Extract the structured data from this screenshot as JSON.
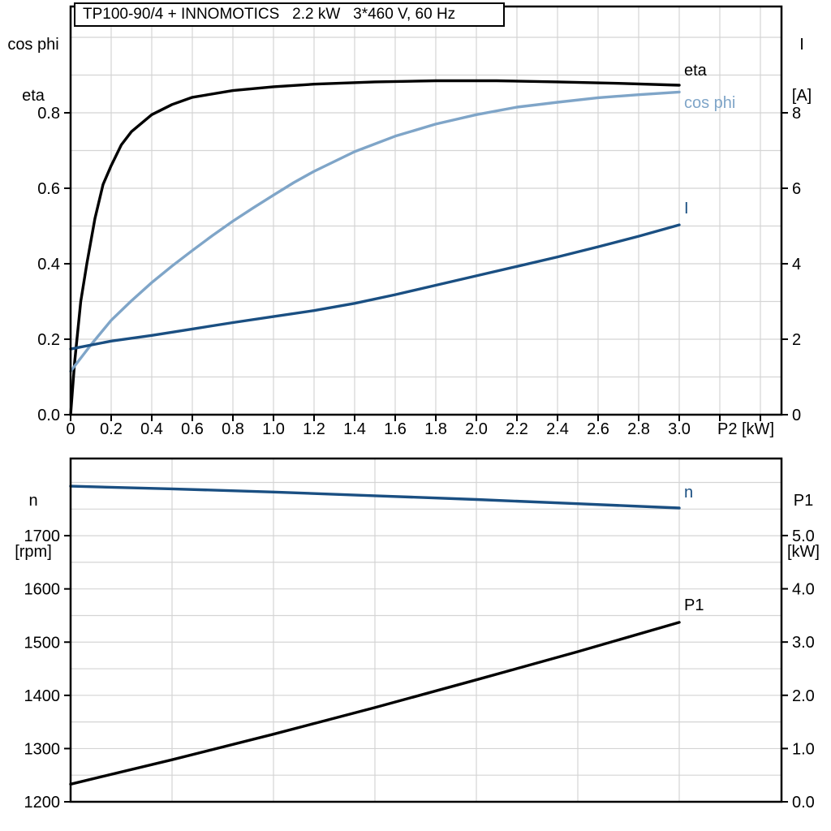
{
  "page": {
    "background": "#ffffff"
  },
  "title_box": {
    "text": "TP100-90/4 + INNOMOTICS   2.2 kW   3*460 V, 60 Hz"
  },
  "corner_labels": {
    "top_left": [
      "cos phi",
      "eta"
    ],
    "top_right": [
      "I",
      "[A]"
    ],
    "bottom_left": [
      "n",
      "[rpm]"
    ],
    "bottom_right": [
      "P1",
      "[kW]"
    ]
  },
  "colors": {
    "black": "#000000",
    "light_blue": "#7fa5c8",
    "dark_blue": "#1a4f82",
    "grid": "#d4d4d4",
    "background": "#ffffff"
  },
  "chart_data": [
    {
      "type": "line",
      "title": "TP100-90/4 + INNOMOTICS   2.2 kW   3*460 V, 60 Hz",
      "xlabel": "P2 [kW]",
      "xlim": [
        0,
        3.504
      ],
      "x_grid_step": 0.2,
      "x_ticks": [
        {
          "v": 0,
          "l": "0"
        },
        {
          "v": 0.2,
          "l": "0.2"
        },
        {
          "v": 0.4,
          "l": "0.4"
        },
        {
          "v": 0.6,
          "l": "0.6"
        },
        {
          "v": 0.8,
          "l": "0.8"
        },
        {
          "v": 1.0,
          "l": "1.0"
        },
        {
          "v": 1.2,
          "l": "1.2"
        },
        {
          "v": 1.4,
          "l": "1.4"
        },
        {
          "v": 1.6,
          "l": "1.6"
        },
        {
          "v": 1.8,
          "l": "1.8"
        },
        {
          "v": 2.0,
          "l": "2.0"
        },
        {
          "v": 2.2,
          "l": "2.2"
        },
        {
          "v": 2.4,
          "l": "2.4"
        },
        {
          "v": 2.6,
          "l": "2.6"
        },
        {
          "v": 2.8,
          "l": "2.8"
        },
        {
          "v": 3.0,
          "l": "3.0"
        },
        {
          "v": 3.2,
          "l": ""
        },
        {
          "v": 3.4,
          "l": ""
        }
      ],
      "left_axis": {
        "title_lines": [
          "cos phi",
          "eta"
        ],
        "lim": [
          0,
          1.0817
        ],
        "grid_step": 0.1,
        "ticks": [
          {
            "v": 0,
            "l": "0.0"
          },
          {
            "v": 0.2,
            "l": "0.2"
          },
          {
            "v": 0.4,
            "l": "0.4"
          },
          {
            "v": 0.6,
            "l": "0.6"
          },
          {
            "v": 0.8,
            "l": "0.8"
          }
        ]
      },
      "right_axis": {
        "title_lines": [
          "I",
          "[A]"
        ],
        "lim": [
          0,
          10.817
        ],
        "ticks": [
          {
            "v": 0,
            "l": "0"
          },
          {
            "v": 2,
            "l": "2"
          },
          {
            "v": 4,
            "l": "4"
          },
          {
            "v": 6,
            "l": "6"
          },
          {
            "v": 8,
            "l": "8"
          }
        ]
      },
      "series": [
        {
          "name": "eta",
          "axis": "left",
          "color": "#000000",
          "x": [
            0,
            0.02,
            0.05,
            0.08,
            0.12,
            0.16,
            0.2,
            0.25,
            0.3,
            0.4,
            0.5,
            0.6,
            0.8,
            1.0,
            1.2,
            1.5,
            1.8,
            2.1,
            2.4,
            2.7,
            3.0
          ],
          "y": [
            0,
            0.14,
            0.3,
            0.4,
            0.52,
            0.61,
            0.66,
            0.715,
            0.75,
            0.795,
            0.822,
            0.841,
            0.859,
            0.869,
            0.876,
            0.882,
            0.885,
            0.885,
            0.882,
            0.878,
            0.873
          ]
        },
        {
          "name": "cos phi",
          "axis": "left",
          "color": "#7fa5c8",
          "x": [
            0,
            0.1,
            0.2,
            0.3,
            0.4,
            0.5,
            0.6,
            0.7,
            0.8,
            0.9,
            1.0,
            1.1,
            1.2,
            1.4,
            1.6,
            1.8,
            2.0,
            2.2,
            2.4,
            2.6,
            2.8,
            3.0
          ],
          "y": [
            0.115,
            0.185,
            0.25,
            0.302,
            0.35,
            0.394,
            0.435,
            0.475,
            0.513,
            0.548,
            0.582,
            0.615,
            0.645,
            0.697,
            0.738,
            0.77,
            0.795,
            0.815,
            0.828,
            0.84,
            0.848,
            0.855
          ]
        },
        {
          "name": "I",
          "axis": "right",
          "color": "#1a4f82",
          "x": [
            0,
            0.2,
            0.4,
            0.6,
            0.8,
            1.0,
            1.2,
            1.4,
            1.6,
            1.8,
            2.0,
            2.2,
            2.4,
            2.6,
            2.8,
            3.0
          ],
          "y": [
            1.74,
            1.95,
            2.1,
            2.27,
            2.44,
            2.6,
            2.76,
            2.95,
            3.18,
            3.43,
            3.68,
            3.93,
            4.18,
            4.45,
            4.73,
            5.03
          ]
        }
      ]
    },
    {
      "type": "line",
      "title": "",
      "xlabel": "",
      "xlim": [
        0,
        3.504
      ],
      "x_grid_step": 0.5,
      "x_ticks": [],
      "left_axis": {
        "title_lines": [
          "n",
          "[rpm]"
        ],
        "lim": [
          1200,
          1845
        ],
        "grid_step": 50,
        "ticks": [
          {
            "v": 1200,
            "l": "1200"
          },
          {
            "v": 1300,
            "l": "1300"
          },
          {
            "v": 1400,
            "l": "1400"
          },
          {
            "v": 1500,
            "l": "1500"
          },
          {
            "v": 1600,
            "l": "1600"
          },
          {
            "v": 1700,
            "l": "1700"
          }
        ]
      },
      "right_axis": {
        "title_lines": [
          "P1",
          "[kW]"
        ],
        "lim": [
          0,
          6.447
        ],
        "ticks": [
          {
            "v": 0,
            "l": "0.0"
          },
          {
            "v": 1,
            "l": "1.0"
          },
          {
            "v": 2,
            "l": "2.0"
          },
          {
            "v": 3,
            "l": "3.0"
          },
          {
            "v": 4,
            "l": "4.0"
          },
          {
            "v": 5,
            "l": "5.0"
          }
        ]
      },
      "series": [
        {
          "name": "n",
          "axis": "left",
          "color": "#1a4f82",
          "x": [
            0,
            0.5,
            1.0,
            1.5,
            2.0,
            2.5,
            3.0
          ],
          "y": [
            1793,
            1788,
            1782,
            1775,
            1768,
            1760,
            1752
          ]
        },
        {
          "name": "P1",
          "axis": "right",
          "color": "#000000",
          "x": [
            0,
            0.5,
            1.0,
            1.5,
            2.0,
            2.5,
            3.0
          ],
          "y": [
            0.33,
            0.79,
            1.27,
            1.77,
            2.29,
            2.82,
            3.37
          ]
        }
      ]
    }
  ]
}
